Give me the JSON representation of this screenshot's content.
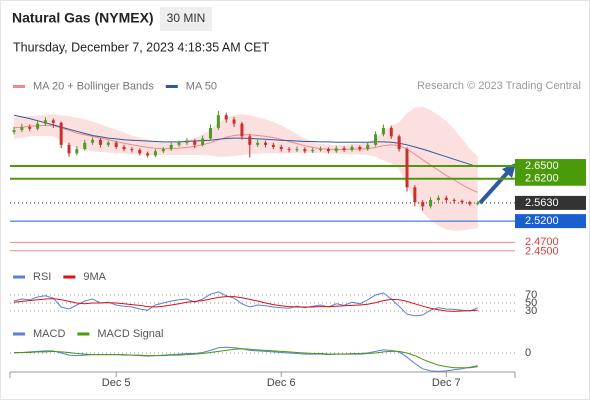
{
  "chart_data": [
    {
      "type": "candlestick",
      "title": "Natural Gas (NYMEX)",
      "timeframe": "30 MIN",
      "timestamp": "Thursday, December 7, 2023 4:18:35 AM CET",
      "credit": "Research © 2023 Trading Central",
      "categories": [
        null,
        null,
        null,
        null,
        null,
        null,
        null,
        null,
        null,
        null,
        null,
        null,
        null,
        "Dec 5",
        null,
        null,
        null,
        null,
        null,
        null,
        null,
        null,
        null,
        null,
        null,
        null,
        null,
        null,
        null,
        null,
        null,
        null,
        null,
        null,
        "Dec 6",
        null,
        null,
        null,
        null,
        null,
        null,
        null,
        null,
        null,
        null,
        null,
        null,
        null,
        null,
        null,
        null,
        null,
        null,
        null,
        null,
        "Dec 7",
        null,
        null,
        null,
        null
      ],
      "up_color": "#4d9a26",
      "down_color": "#c8302c",
      "candles": [
        [
          2.73,
          2.743,
          2.725,
          2.735
        ],
        [
          2.735,
          2.75,
          2.73,
          2.742
        ],
        [
          2.742,
          2.748,
          2.732,
          2.738
        ],
        [
          2.738,
          2.756,
          2.734,
          2.75
        ],
        [
          2.75,
          2.765,
          2.745,
          2.758
        ],
        [
          2.758,
          2.762,
          2.74,
          2.752
        ],
        [
          2.752,
          2.755,
          2.692,
          2.7
        ],
        [
          2.7,
          2.705,
          2.672,
          2.68
        ],
        [
          2.68,
          2.697,
          2.675,
          2.69
        ],
        [
          2.69,
          2.712,
          2.686,
          2.705
        ],
        [
          2.705,
          2.718,
          2.7,
          2.712
        ],
        [
          2.712,
          2.716,
          2.694,
          2.7
        ],
        [
          2.7,
          2.71,
          2.695,
          2.705
        ],
        [
          2.705,
          2.709,
          2.69,
          2.695
        ],
        [
          2.695,
          2.7,
          2.685,
          2.69
        ],
        [
          2.69,
          2.695,
          2.682,
          2.688
        ],
        [
          2.688,
          2.692,
          2.675,
          2.68
        ],
        [
          2.68,
          2.684,
          2.67,
          2.675
        ],
        [
          2.675,
          2.69,
          2.671,
          2.685
        ],
        [
          2.685,
          2.695,
          2.681,
          2.69
        ],
        [
          2.69,
          2.705,
          2.686,
          2.7
        ],
        [
          2.7,
          2.71,
          2.695,
          2.705
        ],
        [
          2.705,
          2.716,
          2.7,
          2.71
        ],
        [
          2.71,
          2.714,
          2.692,
          2.7
        ],
        [
          2.7,
          2.722,
          2.696,
          2.715
        ],
        [
          2.715,
          2.748,
          2.71,
          2.74
        ],
        [
          2.74,
          2.78,
          2.735,
          2.77
        ],
        [
          2.77,
          2.776,
          2.752,
          2.76
        ],
        [
          2.76,
          2.766,
          2.742,
          2.75
        ],
        [
          2.75,
          2.754,
          2.712,
          2.72
        ],
        [
          2.72,
          2.725,
          2.67,
          2.7
        ],
        [
          2.7,
          2.712,
          2.695,
          2.705
        ],
        [
          2.705,
          2.71,
          2.694,
          2.7
        ],
        [
          2.7,
          2.705,
          2.69,
          2.695
        ],
        [
          2.695,
          2.7,
          2.684,
          2.69
        ],
        [
          2.69,
          2.695,
          2.682,
          2.688
        ],
        [
          2.688,
          2.696,
          2.683,
          2.69
        ],
        [
          2.69,
          2.694,
          2.68,
          2.685
        ],
        [
          2.685,
          2.693,
          2.681,
          2.688
        ],
        [
          2.688,
          2.696,
          2.684,
          2.69
        ],
        [
          2.69,
          2.694,
          2.68,
          2.685
        ],
        [
          2.685,
          2.698,
          2.681,
          2.692
        ],
        [
          2.692,
          2.697,
          2.683,
          2.688
        ],
        [
          2.688,
          2.7,
          2.684,
          2.695
        ],
        [
          2.695,
          2.699,
          2.685,
          2.69
        ],
        [
          2.69,
          2.706,
          2.686,
          2.7
        ],
        [
          2.7,
          2.732,
          2.696,
          2.725
        ],
        [
          2.725,
          2.748,
          2.72,
          2.74
        ],
        [
          2.74,
          2.745,
          2.714,
          2.72
        ],
        [
          2.72,
          2.724,
          2.684,
          2.69
        ],
        [
          2.69,
          2.694,
          2.59,
          2.6
        ],
        [
          2.6,
          2.605,
          2.555,
          2.565
        ],
        [
          2.565,
          2.57,
          2.545,
          2.555
        ],
        [
          2.555,
          2.576,
          2.55,
          2.57
        ],
        [
          2.57,
          2.581,
          2.566,
          2.575
        ],
        [
          2.575,
          2.58,
          2.565,
          2.57
        ],
        [
          2.57,
          2.574,
          2.562,
          2.568
        ],
        [
          2.568,
          2.571,
          2.56,
          2.565
        ],
        [
          2.565,
          2.568,
          2.556,
          2.56
        ],
        [
          2.56,
          2.567,
          2.557,
          2.563
        ]
      ],
      "series": [
        {
          "name": "MA 20 + Bollinger Bands",
          "color": "#f08a8a",
          "values": [
            2.74,
            2.742,
            2.744,
            2.745,
            2.746,
            2.746,
            2.74,
            2.734,
            2.728,
            2.724,
            2.72,
            2.716,
            2.712,
            2.708,
            2.704,
            2.7,
            2.697,
            2.694,
            2.692,
            2.691,
            2.691,
            2.692,
            2.694,
            2.696,
            2.7,
            2.705,
            2.712,
            2.718,
            2.722,
            2.724,
            2.724,
            2.722,
            2.72,
            2.717,
            2.713,
            2.708,
            2.703,
            2.698,
            2.694,
            2.691,
            2.69,
            2.689,
            2.689,
            2.69,
            2.69,
            2.691,
            2.694,
            2.698,
            2.7,
            2.698,
            2.69,
            2.678,
            2.665,
            2.652,
            2.64,
            2.628,
            2.617,
            2.606,
            2.596,
            2.588
          ],
          "upper": [
            2.765,
            2.767,
            2.768,
            2.769,
            2.771,
            2.772,
            2.77,
            2.768,
            2.764,
            2.76,
            2.755,
            2.749,
            2.742,
            2.736,
            2.729,
            2.722,
            2.717,
            2.712,
            2.708,
            2.706,
            2.706,
            2.708,
            2.712,
            2.716,
            2.724,
            2.735,
            2.752,
            2.764,
            2.77,
            2.772,
            2.77,
            2.765,
            2.76,
            2.754,
            2.746,
            2.736,
            2.725,
            2.715,
            2.707,
            2.702,
            2.7,
            2.699,
            2.7,
            2.702,
            2.703,
            2.706,
            2.716,
            2.733,
            2.745,
            2.753,
            2.775,
            2.788,
            2.79,
            2.782,
            2.77,
            2.756,
            2.737,
            2.714,
            2.691,
            2.673
          ],
          "lower": [
            2.715,
            2.717,
            2.72,
            2.721,
            2.721,
            2.72,
            2.71,
            2.7,
            2.692,
            2.688,
            2.685,
            2.683,
            2.682,
            2.68,
            2.679,
            2.678,
            2.677,
            2.676,
            2.676,
            2.676,
            2.676,
            2.676,
            2.676,
            2.676,
            2.676,
            2.675,
            2.672,
            2.672,
            2.674,
            2.676,
            2.678,
            2.679,
            2.68,
            2.68,
            2.68,
            2.68,
            2.681,
            2.681,
            2.681,
            2.68,
            2.68,
            2.679,
            2.678,
            2.678,
            2.677,
            2.676,
            2.672,
            2.663,
            2.655,
            2.643,
            2.605,
            2.568,
            2.54,
            2.522,
            2.51,
            2.5,
            2.497,
            2.498,
            2.501,
            2.503
          ],
          "band_color": "#fbd9d9"
        },
        {
          "name": "MA 50",
          "color": "#2c5aa0",
          "values": [
            2.77,
            2.766,
            2.762,
            2.757,
            2.752,
            2.747,
            2.742,
            2.737,
            2.732,
            2.727,
            2.722,
            2.719,
            2.716,
            2.714,
            2.712,
            2.711,
            2.71,
            2.709,
            2.708,
            2.707,
            2.707,
            2.707,
            2.708,
            2.709,
            2.71,
            2.711,
            2.713,
            2.715,
            2.716,
            2.716,
            2.715,
            2.714,
            2.713,
            2.712,
            2.711,
            2.71,
            2.709,
            2.708,
            2.708,
            2.707,
            2.707,
            2.706,
            2.706,
            2.706,
            2.706,
            2.706,
            2.707,
            2.707,
            2.706,
            2.704,
            2.7,
            2.695,
            2.69,
            2.684,
            2.678,
            2.672,
            2.666,
            2.66,
            2.654,
            2.648
          ]
        }
      ],
      "levels": [
        {
          "value": 2.65,
          "label": "2.6500",
          "color": "#4a9a0a",
          "boxed": true
        },
        {
          "value": 2.62,
          "label": "2.6200",
          "color": "#4a9a0a",
          "boxed": true
        },
        {
          "value": 2.563,
          "label": "2.5630",
          "color": "#333333",
          "boxed": true,
          "dashed": true
        },
        {
          "value": 2.52,
          "label": "2.5200",
          "color": "#1a5fd0",
          "boxed": true
        },
        {
          "value": 2.47,
          "label": "2.4700",
          "color": "#e04040",
          "boxed": false
        },
        {
          "value": 2.45,
          "label": "2.4500",
          "color": "#e04040",
          "boxed": false
        }
      ],
      "ylim": [
        2.42,
        2.82
      ]
    },
    {
      "type": "line",
      "ylim": [
        15,
        85
      ],
      "yticks": [
        70,
        50,
        30
      ],
      "grid": true,
      "series": [
        {
          "name": "RSI",
          "color": "#5a7fd6",
          "values": [
            55,
            60,
            58,
            65,
            68,
            62,
            40,
            35,
            45,
            55,
            60,
            50,
            52,
            45,
            42,
            40,
            35,
            32,
            45,
            50,
            55,
            58,
            60,
            52,
            60,
            72,
            78,
            68,
            62,
            48,
            40,
            45,
            43,
            40,
            38,
            37,
            42,
            38,
            42,
            45,
            40,
            48,
            44,
            52,
            48,
            58,
            70,
            75,
            60,
            42,
            22,
            18,
            20,
            32,
            38,
            35,
            34,
            32,
            30,
            38
          ]
        },
        {
          "name": "9MA",
          "color": "#dd1111",
          "values": [
            52,
            54,
            56,
            58,
            60,
            61,
            58,
            54,
            50,
            48,
            50,
            50,
            51,
            50,
            48,
            46,
            44,
            41,
            40,
            42,
            45,
            48,
            52,
            54,
            56,
            60,
            64,
            66,
            66,
            63,
            59,
            55,
            50,
            46,
            43,
            41,
            40,
            40,
            40,
            41,
            41,
            42,
            43,
            44,
            45,
            47,
            51,
            56,
            59,
            58,
            54,
            48,
            42,
            37,
            33,
            30,
            29,
            30,
            31,
            32
          ]
        }
      ]
    },
    {
      "type": "line",
      "ylim": [
        -0.04,
        0.04
      ],
      "yticks": [
        0
      ],
      "grid": true,
      "series": [
        {
          "name": "MACD",
          "color": "#5a7fd6",
          "values": [
            0.0,
            0.001,
            0.002,
            0.003,
            0.004,
            0.004,
            0.0,
            -0.004,
            -0.005,
            -0.004,
            -0.003,
            -0.003,
            -0.003,
            -0.003,
            -0.004,
            -0.004,
            -0.005,
            -0.006,
            -0.005,
            -0.004,
            -0.003,
            -0.002,
            -0.001,
            -0.001,
            0.001,
            0.005,
            0.01,
            0.011,
            0.01,
            0.008,
            0.005,
            0.004,
            0.003,
            0.002,
            0.001,
            0.0,
            -0.001,
            -0.002,
            -0.002,
            -0.002,
            -0.003,
            -0.002,
            -0.002,
            -0.001,
            -0.001,
            0.0,
            0.003,
            0.006,
            0.005,
            0.002,
            -0.008,
            -0.02,
            -0.03,
            -0.034,
            -0.035,
            -0.034,
            -0.032,
            -0.03,
            -0.027,
            -0.024
          ]
        },
        {
          "name": "MACD Signal",
          "color": "#4a9a0a",
          "values": [
            0.001,
            0.001,
            0.001,
            0.002,
            0.002,
            0.003,
            0.002,
            0.001,
            -0.001,
            -0.002,
            -0.003,
            -0.003,
            -0.003,
            -0.003,
            -0.003,
            -0.004,
            -0.004,
            -0.005,
            -0.005,
            -0.005,
            -0.004,
            -0.004,
            -0.003,
            -0.002,
            -0.001,
            0.001,
            0.003,
            0.005,
            0.007,
            0.008,
            0.007,
            0.006,
            0.005,
            0.004,
            0.003,
            0.002,
            0.001,
            0.0,
            -0.001,
            -0.001,
            -0.002,
            -0.002,
            -0.002,
            -0.002,
            -0.002,
            -0.001,
            0.0,
            0.002,
            0.003,
            0.003,
            0.0,
            -0.005,
            -0.012,
            -0.018,
            -0.023,
            -0.026,
            -0.028,
            -0.028,
            -0.028,
            -0.026
          ]
        }
      ]
    }
  ]
}
